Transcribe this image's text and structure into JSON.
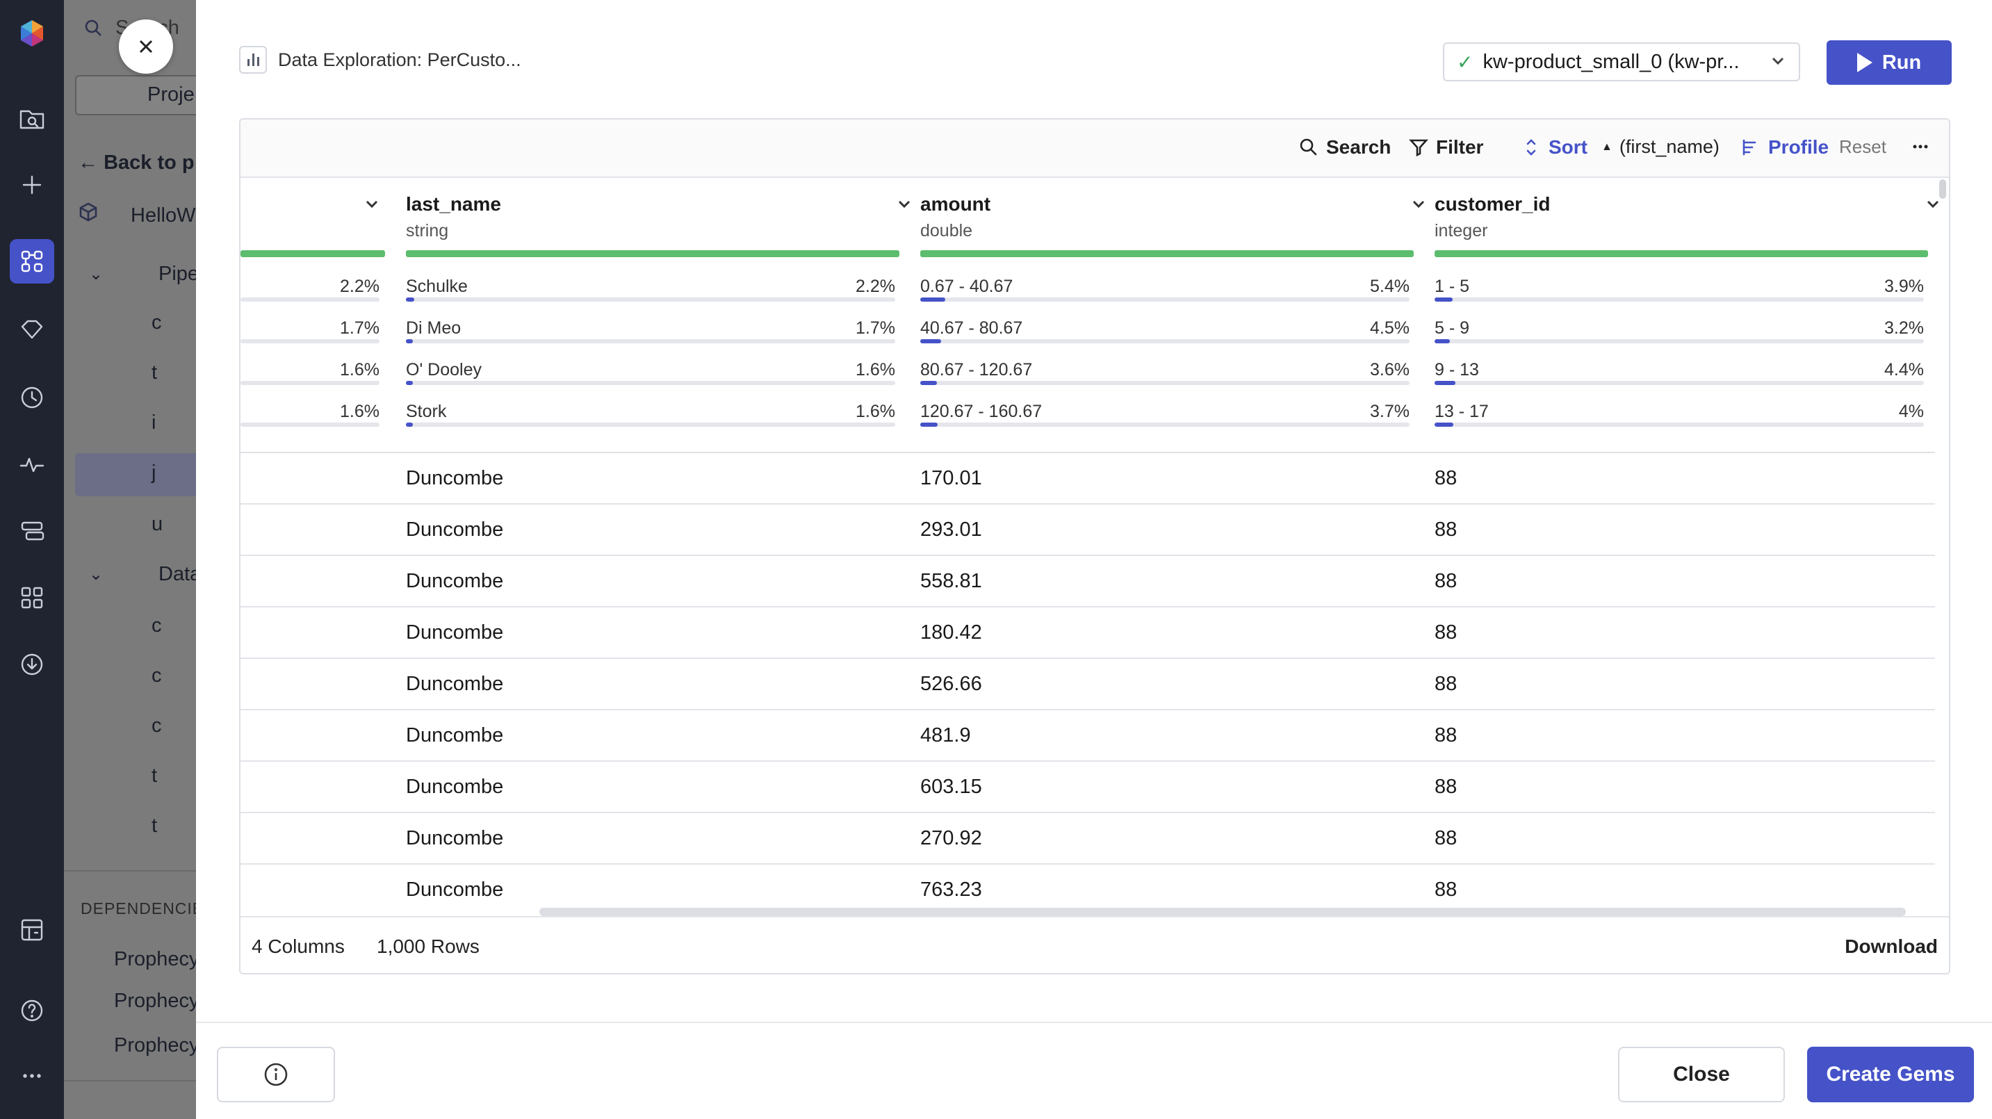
{
  "sidebar_panel": {
    "search_placeholder": "Search",
    "project_tab": "Proje",
    "back_link": "Back to p",
    "project_name": "HelloW",
    "pipelines_label": "Pipe",
    "datasets_label": "Data",
    "pipeline_items": [
      "c",
      "t",
      "i",
      "j",
      "u"
    ],
    "dataset_items": [
      "c",
      "c",
      "c",
      "t",
      "t"
    ],
    "dependencies_label": "DEPENDENCIE",
    "dependency_items": [
      "Prophecy",
      "Prophecy",
      "Prophecy"
    ]
  },
  "modal": {
    "title": "Data Exploration: PerCusto...",
    "cluster": {
      "label": "kw-product_small_0 (kw-pr...",
      "status": "connected"
    },
    "run_label": "Run",
    "toolbar": {
      "search": "Search",
      "filter": "Filter",
      "sort": "Sort",
      "sort_field": "(first_name)",
      "profile": "Profile",
      "reset": "Reset"
    },
    "columns": [
      {
        "name": "last_name",
        "type": "string"
      },
      {
        "name": "amount",
        "type": "double"
      },
      {
        "name": "customer_id",
        "type": "integer"
      }
    ],
    "first_column_stats": [
      "2.2%",
      "1.7%",
      "1.6%",
      "1.6%"
    ],
    "stats": {
      "last_name": [
        {
          "label": "Schulke",
          "pct": "2.2%"
        },
        {
          "label": "Di Meo",
          "pct": "1.7%"
        },
        {
          "label": "O' Dooley",
          "pct": "1.6%"
        },
        {
          "label": "Stork",
          "pct": "1.6%"
        }
      ],
      "amount": [
        {
          "label": "0.67 - 40.67",
          "pct": "5.4%"
        },
        {
          "label": "40.67 - 80.67",
          "pct": "4.5%"
        },
        {
          "label": "80.67 - 120.67",
          "pct": "3.6%"
        },
        {
          "label": "120.67 - 160.67",
          "pct": "3.7%"
        }
      ],
      "customer_id": [
        {
          "label": "1 - 5",
          "pct": "3.9%"
        },
        {
          "label": "5 - 9",
          "pct": "3.2%"
        },
        {
          "label": "9 - 13",
          "pct": "4.4%"
        },
        {
          "label": "13 - 17",
          "pct": "4%"
        }
      ]
    },
    "rows": [
      [
        "Duncombe",
        "170.01",
        "88"
      ],
      [
        "Duncombe",
        "293.01",
        "88"
      ],
      [
        "Duncombe",
        "558.81",
        "88"
      ],
      [
        "Duncombe",
        "180.42",
        "88"
      ],
      [
        "Duncombe",
        "526.66",
        "88"
      ],
      [
        "Duncombe",
        "481.9",
        "88"
      ],
      [
        "Duncombe",
        "603.15",
        "88"
      ],
      [
        "Duncombe",
        "270.92",
        "88"
      ],
      [
        "Duncombe",
        "763.23",
        "88"
      ]
    ],
    "footer": {
      "columns_count": "4 Columns",
      "rows_count": "1,000 Rows",
      "download": "Download"
    },
    "close_label": "Close",
    "create_label": "Create Gems"
  },
  "colors": {
    "accent": "#4552c8",
    "profile_bar": "#5cbd6e",
    "rail": "#1f2430"
  }
}
